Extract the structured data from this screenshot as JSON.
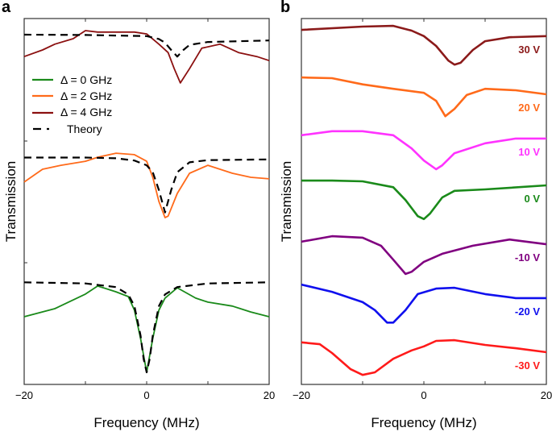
{
  "chart_data": [
    {
      "type": "line",
      "panel_label": "a",
      "xlabel": "Frequency (MHz)",
      "ylabel": "Transmission",
      "xlim": [
        -20,
        20
      ],
      "ylim": [
        0,
        100
      ],
      "x_ticks": [
        -20,
        -10,
        0,
        10,
        20
      ],
      "x_tick_labels": [
        "−20",
        "",
        "0",
        "",
        "20"
      ],
      "y_tick_labels": "none",
      "legend_position": "upper-left",
      "grid": false,
      "legend": [
        {
          "label": "Δ = 0 GHz",
          "color": "#1a8a1a",
          "style": "solid"
        },
        {
          "label": "Δ = 2 GHz",
          "color": "#ff6a1a",
          "style": "solid"
        },
        {
          "label": "Δ = 4 GHz",
          "color": "#8b1010",
          "style": "solid"
        },
        {
          "label": "Theory",
          "color": "#000000",
          "style": "dash-dot"
        }
      ],
      "series": [
        {
          "name": "Δ = 0 GHz",
          "color": "#1a8a1a",
          "style": "solid",
          "x": [
            -20,
            -15,
            -10,
            -8,
            -5,
            -3,
            -2,
            -1,
            0,
            1,
            2,
            3,
            5,
            8,
            10,
            14,
            17,
            20
          ],
          "y": [
            18.5,
            20.7,
            24.7,
            26.9,
            25.3,
            24.0,
            20.3,
            12.6,
            3.3,
            12.6,
            20.3,
            23.6,
            26.4,
            23.6,
            22.5,
            21.4,
            19.8,
            18.5
          ]
        },
        {
          "name": "Theory",
          "color": "#000000",
          "style": "dash",
          "x": [
            -20,
            -10,
            -5,
            -3,
            -2,
            -1,
            -0.5,
            0,
            0.5,
            1,
            2,
            3,
            5,
            10,
            20
          ],
          "y": [
            27.9,
            27.6,
            26.6,
            24.6,
            21.4,
            13.4,
            7.0,
            3.3,
            7.0,
            13.4,
            21.4,
            24.6,
            26.6,
            27.6,
            27.9
          ]
        },
        {
          "name": "Δ = 2 GHz",
          "color": "#ff6a1a",
          "style": "solid",
          "x": [
            -20,
            -17,
            -14,
            -10,
            -8,
            -5,
            -2,
            0,
            1,
            2,
            3,
            3.5,
            5,
            7,
            10,
            14,
            17,
            20
          ],
          "y": [
            55.3,
            58.8,
            59.9,
            61.0,
            62.1,
            63.2,
            62.8,
            61.0,
            56.6,
            50.0,
            45.6,
            46.0,
            52.2,
            57.7,
            59.9,
            57.7,
            56.6,
            56.2
          ]
        },
        {
          "name": "Theory",
          "color": "#000000",
          "style": "dash",
          "x": [
            -20,
            -10,
            -5,
            -2,
            0,
            1,
            2,
            3,
            4,
            5,
            7,
            10,
            20
          ],
          "y": [
            62.0,
            62.0,
            61.8,
            61.2,
            59.9,
            58.0,
            53.1,
            47.0,
            53.1,
            58.0,
            60.7,
            61.3,
            61.5
          ]
        },
        {
          "name": "Δ = 4 GHz",
          "color": "#8b1010",
          "style": "solid",
          "x": [
            -20,
            -17,
            -15,
            -12,
            -10,
            -8,
            -5,
            -2,
            0,
            2,
            3.5,
            4.5,
            5.5,
            7,
            9,
            12,
            15,
            18,
            20
          ],
          "y": [
            89.6,
            91.4,
            93.0,
            94.5,
            96.7,
            96.3,
            96.3,
            96.3,
            95.8,
            93.0,
            90.7,
            86.3,
            82.4,
            86.3,
            91.9,
            93.0,
            90.7,
            89.6,
            88.5
          ]
        },
        {
          "name": "Theory",
          "color": "#000000",
          "style": "dash",
          "x": [
            -20,
            -10,
            0,
            2,
            3,
            4,
            5,
            6,
            7,
            10,
            20
          ],
          "y": [
            95.6,
            95.5,
            95.2,
            94.4,
            93.4,
            91.4,
            89.6,
            91.4,
            92.8,
            93.6,
            94.0
          ]
        }
      ]
    },
    {
      "type": "line",
      "panel_label": "b",
      "xlabel": "Frequency (MHz)",
      "ylabel": "Transmission",
      "xlim": [
        -20,
        20
      ],
      "ylim": [
        0,
        100
      ],
      "x_ticks": [
        -20,
        -10,
        0,
        10,
        20
      ],
      "x_tick_labels": [
        "−20",
        "",
        "0",
        "",
        "20"
      ],
      "y_tick_labels": "none",
      "grid": false,
      "series": [
        {
          "name": "30 V",
          "color": "#8b1a1a",
          "x": [
            -20,
            -10,
            -5,
            -2,
            0,
            2,
            4,
            5,
            6,
            8,
            10,
            14,
            20
          ],
          "y": [
            96.9,
            97.8,
            98.0,
            96.7,
            95.2,
            92.5,
            88.5,
            87.4,
            87.9,
            91.4,
            93.8,
            94.9,
            95.2
          ]
        },
        {
          "name": "20 V",
          "color": "#ff6a1a",
          "x": [
            -20,
            -15,
            -10,
            -5,
            0,
            2,
            3.5,
            5,
            7,
            10,
            15,
            20
          ],
          "y": [
            83.9,
            83.7,
            82.0,
            80.8,
            79.7,
            77.5,
            73.3,
            75.3,
            79.1,
            80.8,
            80.4,
            79.3
          ]
        },
        {
          "name": "10 V",
          "color": "#ff33ff",
          "x": [
            -20,
            -15,
            -10,
            -5,
            -2,
            0,
            2,
            3,
            5,
            10,
            15,
            20
          ],
          "y": [
            68.1,
            69.2,
            69.2,
            68.1,
            64.5,
            61.2,
            58.8,
            59.9,
            63.2,
            65.9,
            67.2,
            67.2
          ]
        },
        {
          "name": "0 V",
          "color": "#1a8a1a",
          "x": [
            -20,
            -15,
            -10,
            -5,
            -3,
            -1,
            0,
            1,
            3,
            5,
            10,
            20
          ],
          "y": [
            55.7,
            55.7,
            55.5,
            53.9,
            50.4,
            46.0,
            45.2,
            46.7,
            51.1,
            52.9,
            53.3,
            54.4
          ]
        },
        {
          "name": "-10 V",
          "color": "#800080",
          "x": [
            -20,
            -15,
            -10,
            -7,
            -5,
            -3,
            -2,
            0,
            3,
            8,
            14,
            20
          ],
          "y": [
            39.0,
            40.5,
            40.1,
            37.9,
            34.1,
            30.2,
            30.8,
            33.5,
            35.7,
            37.9,
            39.6,
            38.3
          ]
        },
        {
          "name": "-20 V",
          "color": "#1010ee",
          "x": [
            -20,
            -15,
            -10,
            -8,
            -6,
            -5,
            -3,
            -1,
            2,
            5,
            10,
            15,
            20
          ],
          "y": [
            27.3,
            25.3,
            22.5,
            20.3,
            16.9,
            16.9,
            20.3,
            24.7,
            26.2,
            26.4,
            24.7,
            23.6,
            23.6
          ]
        },
        {
          "name": "-30 V",
          "color": "#ff1a1a",
          "x": [
            -20,
            -17,
            -15,
            -12,
            -10,
            -8,
            -5,
            -2,
            0,
            2,
            5,
            10,
            15,
            20
          ],
          "y": [
            11.5,
            11.0,
            8.6,
            4.2,
            2.6,
            3.3,
            7.0,
            9.3,
            10.4,
            11.9,
            12.1,
            10.8,
            9.9,
            8.8
          ]
        }
      ]
    }
  ]
}
